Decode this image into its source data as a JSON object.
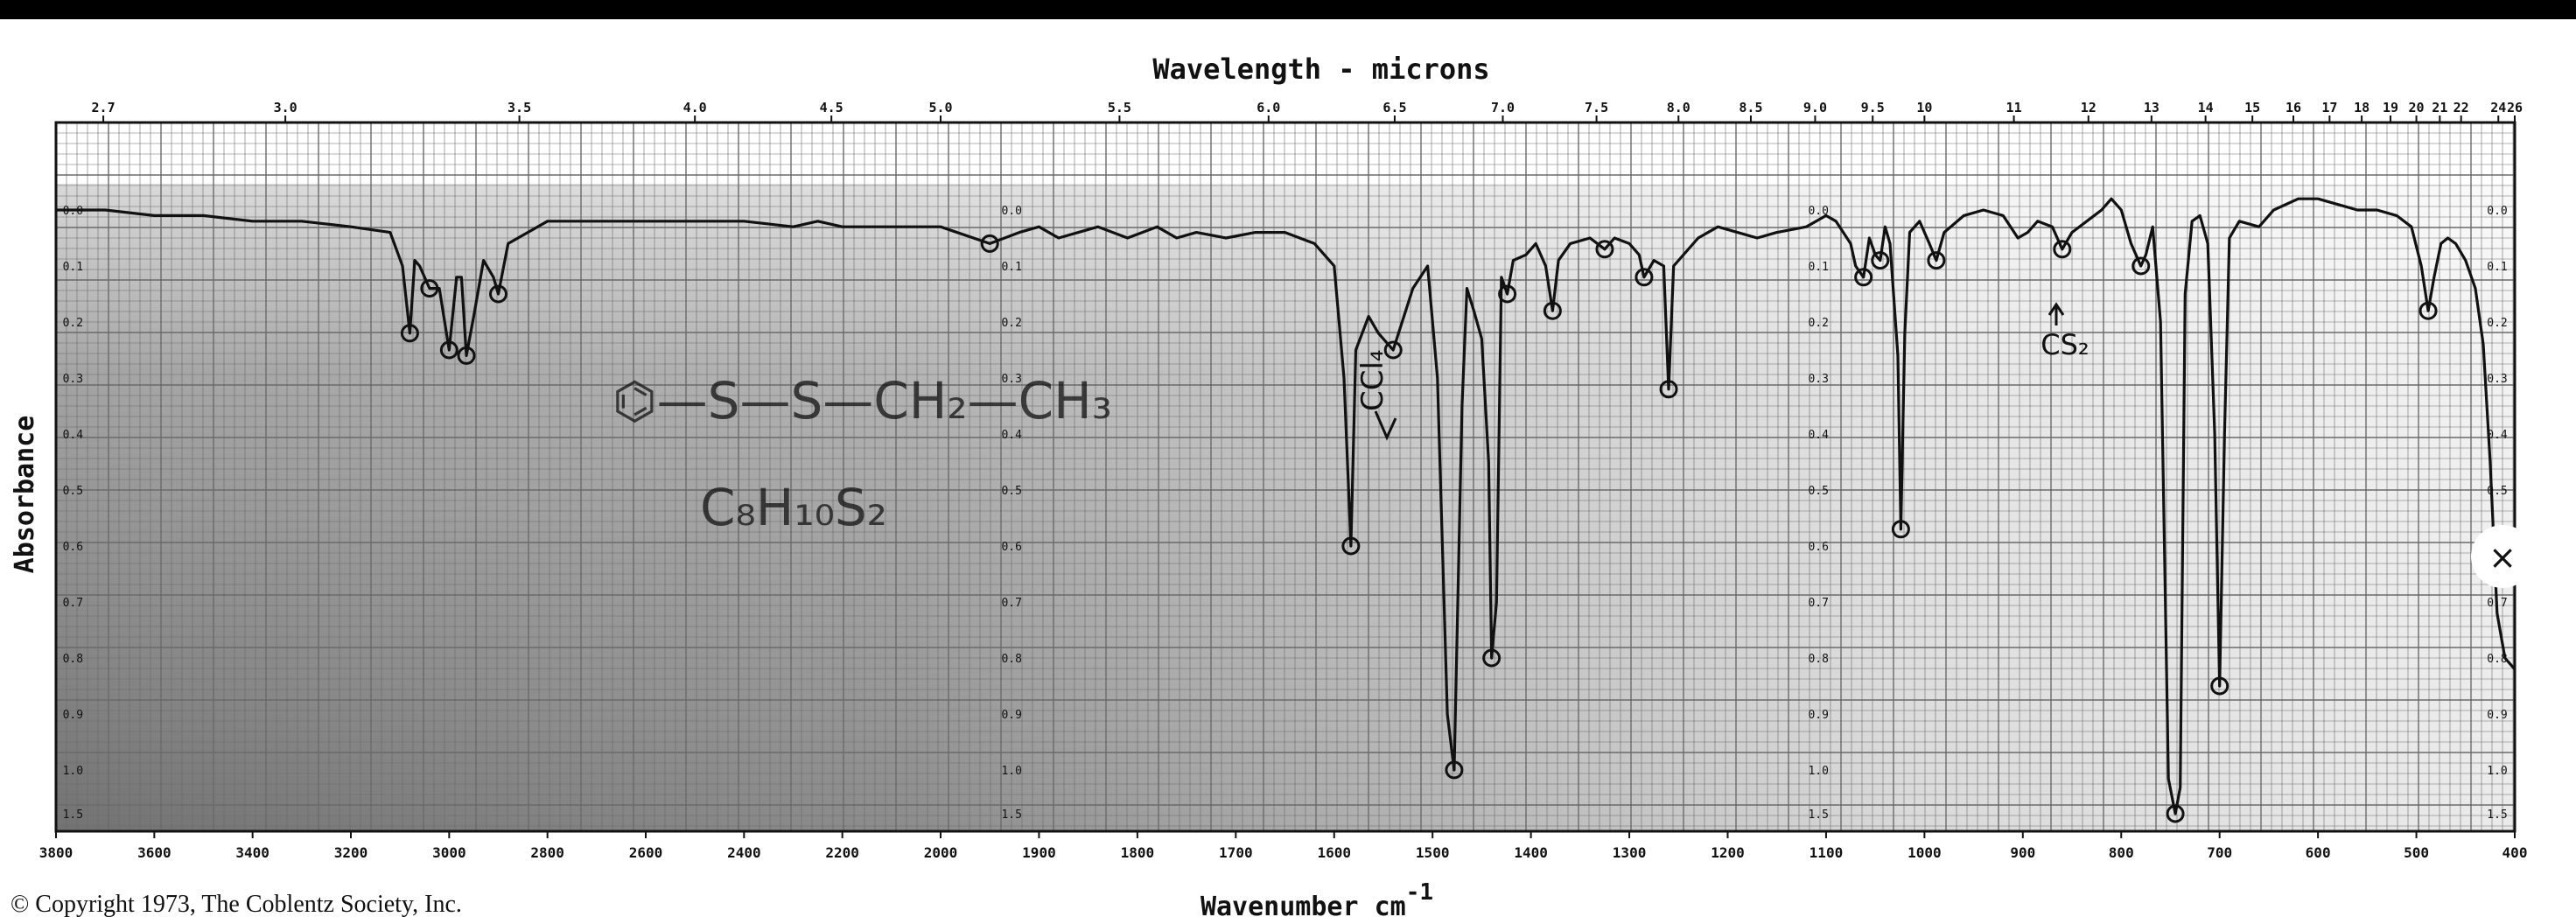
{
  "copyright": "© Copyright 1973, The Coblentz Society, Inc.",
  "close_symbol": "×",
  "annotations": {
    "structure": "⌬—S—S—CH₂—CH₃",
    "formula": "C₈H₁₀S₂",
    "ccl4": "CCl₄",
    "cs2": "CS₂"
  },
  "colors": {
    "ink": "#111111",
    "grid": "#6a6a6a",
    "shade": "#2a2a2a",
    "paper": "#ffffff"
  },
  "chart_data": {
    "type": "line",
    "title": "",
    "xlabel": "Wavenumber cm",
    "xlabel_sup": "-1",
    "top_axis_label": "Wavelength - microns",
    "ylabel": "Absorbance",
    "grid": true,
    "x_ticks": [
      {
        "v": 3800,
        "label": "3800"
      },
      {
        "v": 3600,
        "label": "3600"
      },
      {
        "v": 3400,
        "label": "3400"
      },
      {
        "v": 3200,
        "label": "3200"
      },
      {
        "v": 3000,
        "label": "3000"
      },
      {
        "v": 2800,
        "label": "2800"
      },
      {
        "v": 2600,
        "label": "2600"
      },
      {
        "v": 2400,
        "label": "2400"
      },
      {
        "v": 2200,
        "label": "2200"
      },
      {
        "v": 2000,
        "label": "2000"
      },
      {
        "v": 1900,
        "label": "1900"
      },
      {
        "v": 1800,
        "label": "1800"
      },
      {
        "v": 1700,
        "label": "1700"
      },
      {
        "v": 1600,
        "label": "1600"
      },
      {
        "v": 1500,
        "label": "1500"
      },
      {
        "v": 1400,
        "label": "1400"
      },
      {
        "v": 1300,
        "label": "1300"
      },
      {
        "v": 1200,
        "label": "1200"
      },
      {
        "v": 1100,
        "label": "1100"
      },
      {
        "v": 1000,
        "label": "1000"
      },
      {
        "v": 900,
        "label": "900"
      },
      {
        "v": 800,
        "label": "800"
      },
      {
        "v": 700,
        "label": "700"
      },
      {
        "v": 600,
        "label": "600"
      },
      {
        "v": 500,
        "label": "500"
      },
      {
        "v": 400,
        "label": "400"
      }
    ],
    "micron_ticks": [
      {
        "v": 2.7,
        "label": "2.7"
      },
      {
        "v": 3.0,
        "label": "3.0"
      },
      {
        "v": 3.5,
        "label": "3.5"
      },
      {
        "v": 4.0,
        "label": "4.0"
      },
      {
        "v": 4.5,
        "label": "4.5"
      },
      {
        "v": 5.0,
        "label": "5.0"
      },
      {
        "v": 5.5,
        "label": "5.5"
      },
      {
        "v": 6.0,
        "label": "6.0"
      },
      {
        "v": 6.5,
        "label": "6.5"
      },
      {
        "v": 7.0,
        "label": "7.0"
      },
      {
        "v": 7.5,
        "label": "7.5"
      },
      {
        "v": 8.0,
        "label": "8.0"
      },
      {
        "v": 8.5,
        "label": "8.5"
      },
      {
        "v": 9.0,
        "label": "9.0"
      },
      {
        "v": 9.5,
        "label": "9.5"
      },
      {
        "v": 10,
        "label": "10"
      },
      {
        "v": 11,
        "label": "11"
      },
      {
        "v": 12,
        "label": "12"
      },
      {
        "v": 13,
        "label": "13"
      },
      {
        "v": 14,
        "label": "14"
      },
      {
        "v": 15,
        "label": "15"
      },
      {
        "v": 16,
        "label": "16"
      },
      {
        "v": 17,
        "label": "17"
      },
      {
        "v": 18,
        "label": "18"
      },
      {
        "v": 19,
        "label": "19"
      },
      {
        "v": 20,
        "label": "20"
      },
      {
        "v": 21,
        "label": "21"
      },
      {
        "v": 22,
        "label": "22"
      },
      {
        "v": 24,
        "label": "24"
      },
      {
        "v": 26,
        "label": "26"
      }
    ],
    "y_ticks": [
      {
        "v": 0.0,
        "label": "0.0"
      },
      {
        "v": 0.1,
        "label": "0.1"
      },
      {
        "v": 0.2,
        "label": "0.2"
      },
      {
        "v": 0.3,
        "label": "0.3"
      },
      {
        "v": 0.4,
        "label": "0.4"
      },
      {
        "v": 0.5,
        "label": "0.5"
      },
      {
        "v": 0.6,
        "label": "0.6"
      },
      {
        "v": 0.7,
        "label": "0.7"
      },
      {
        "v": 0.8,
        "label": "0.8"
      },
      {
        "v": 0.9,
        "label": "0.9"
      },
      {
        "v": 1.0,
        "label": "1.0"
      },
      {
        "v": 1.5,
        "label": "1.5"
      }
    ],
    "xlim": [
      3800,
      400
    ],
    "ylim": [
      0.0,
      1.5
    ],
    "series": [
      {
        "points": [
          [
            3800,
            0.0
          ],
          [
            3700,
            0.0
          ],
          [
            3600,
            0.01
          ],
          [
            3500,
            0.01
          ],
          [
            3400,
            0.02
          ],
          [
            3300,
            0.02
          ],
          [
            3200,
            0.03
          ],
          [
            3120,
            0.04
          ],
          [
            3095,
            0.1
          ],
          [
            3080,
            0.22
          ],
          [
            3070,
            0.09
          ],
          [
            3060,
            0.1
          ],
          [
            3040,
            0.14
          ],
          [
            3020,
            0.14
          ],
          [
            3000,
            0.25
          ],
          [
            2985,
            0.12
          ],
          [
            2975,
            0.12
          ],
          [
            2965,
            0.26
          ],
          [
            2950,
            0.19
          ],
          [
            2930,
            0.09
          ],
          [
            2910,
            0.12
          ],
          [
            2900,
            0.15
          ],
          [
            2880,
            0.06
          ],
          [
            2860,
            0.05
          ],
          [
            2800,
            0.02
          ],
          [
            2700,
            0.02
          ],
          [
            2600,
            0.02
          ],
          [
            2500,
            0.02
          ],
          [
            2400,
            0.02
          ],
          [
            2300,
            0.03
          ],
          [
            2250,
            0.02
          ],
          [
            2200,
            0.03
          ],
          [
            2100,
            0.03
          ],
          [
            2000,
            0.03
          ],
          [
            1950,
            0.06
          ],
          [
            1920,
            0.04
          ],
          [
            1900,
            0.03
          ],
          [
            1880,
            0.05
          ],
          [
            1860,
            0.04
          ],
          [
            1840,
            0.03
          ],
          [
            1810,
            0.05
          ],
          [
            1780,
            0.03
          ],
          [
            1760,
            0.05
          ],
          [
            1740,
            0.04
          ],
          [
            1710,
            0.05
          ],
          [
            1680,
            0.04
          ],
          [
            1650,
            0.04
          ],
          [
            1620,
            0.06
          ],
          [
            1600,
            0.1
          ],
          [
            1590,
            0.3
          ],
          [
            1583,
            0.6
          ],
          [
            1578,
            0.25
          ],
          [
            1565,
            0.19
          ],
          [
            1555,
            0.22
          ],
          [
            1540,
            0.25
          ],
          [
            1520,
            0.14
          ],
          [
            1505,
            0.1
          ],
          [
            1495,
            0.3
          ],
          [
            1485,
            0.9
          ],
          [
            1478,
            1.0
          ],
          [
            1470,
            0.35
          ],
          [
            1465,
            0.14
          ],
          [
            1458,
            0.18
          ],
          [
            1450,
            0.23
          ],
          [
            1443,
            0.45
          ],
          [
            1440,
            0.8
          ],
          [
            1435,
            0.7
          ],
          [
            1430,
            0.12
          ],
          [
            1424,
            0.15
          ],
          [
            1418,
            0.09
          ],
          [
            1405,
            0.08
          ],
          [
            1395,
            0.06
          ],
          [
            1385,
            0.1
          ],
          [
            1378,
            0.18
          ],
          [
            1372,
            0.09
          ],
          [
            1360,
            0.06
          ],
          [
            1340,
            0.05
          ],
          [
            1325,
            0.07
          ],
          [
            1315,
            0.05
          ],
          [
            1300,
            0.06
          ],
          [
            1290,
            0.08
          ],
          [
            1285,
            0.12
          ],
          [
            1275,
            0.09
          ],
          [
            1265,
            0.1
          ],
          [
            1260,
            0.32
          ],
          [
            1255,
            0.1
          ],
          [
            1230,
            0.05
          ],
          [
            1210,
            0.03
          ],
          [
            1190,
            0.04
          ],
          [
            1170,
            0.05
          ],
          [
            1150,
            0.04
          ],
          [
            1120,
            0.03
          ],
          [
            1100,
            0.01
          ],
          [
            1090,
            0.02
          ],
          [
            1075,
            0.06
          ],
          [
            1070,
            0.1
          ],
          [
            1062,
            0.12
          ],
          [
            1056,
            0.05
          ],
          [
            1050,
            0.08
          ],
          [
            1045,
            0.09
          ],
          [
            1040,
            0.03
          ],
          [
            1035,
            0.06
          ],
          [
            1027,
            0.26
          ],
          [
            1024,
            0.57
          ],
          [
            1020,
            0.22
          ],
          [
            1015,
            0.04
          ],
          [
            1005,
            0.02
          ],
          [
            995,
            0.06
          ],
          [
            988,
            0.09
          ],
          [
            980,
            0.04
          ],
          [
            960,
            0.01
          ],
          [
            940,
            0.0
          ],
          [
            920,
            0.01
          ],
          [
            905,
            0.05
          ],
          [
            895,
            0.04
          ],
          [
            885,
            0.02
          ],
          [
            870,
            0.03
          ],
          [
            860,
            0.07
          ],
          [
            850,
            0.04
          ],
          [
            835,
            0.02
          ],
          [
            820,
            0.0
          ],
          [
            810,
            -0.02
          ],
          [
            800,
            0.0
          ],
          [
            790,
            0.06
          ],
          [
            780,
            0.1
          ],
          [
            775,
            0.08
          ],
          [
            768,
            0.03
          ],
          [
            760,
            0.2
          ],
          [
            752,
            1.1
          ],
          [
            745,
            1.5
          ],
          [
            740,
            1.2
          ],
          [
            735,
            0.15
          ],
          [
            728,
            0.02
          ],
          [
            720,
            0.01
          ],
          [
            712,
            0.06
          ],
          [
            705,
            0.4
          ],
          [
            700,
            0.85
          ],
          [
            695,
            0.4
          ],
          [
            690,
            0.05
          ],
          [
            680,
            0.02
          ],
          [
            660,
            0.03
          ],
          [
            645,
            0.0
          ],
          [
            620,
            -0.02
          ],
          [
            600,
            -0.02
          ],
          [
            580,
            -0.01
          ],
          [
            560,
            0.0
          ],
          [
            540,
            0.0
          ],
          [
            520,
            0.01
          ],
          [
            505,
            0.03
          ],
          [
            495,
            0.1
          ],
          [
            488,
            0.18
          ],
          [
            482,
            0.12
          ],
          [
            475,
            0.06
          ],
          [
            468,
            0.05
          ],
          [
            460,
            0.06
          ],
          [
            450,
            0.09
          ],
          [
            440,
            0.14
          ],
          [
            432,
            0.24
          ],
          [
            425,
            0.45
          ],
          [
            418,
            0.72
          ],
          [
            410,
            0.8
          ],
          [
            400,
            0.82
          ]
        ]
      }
    ]
  }
}
